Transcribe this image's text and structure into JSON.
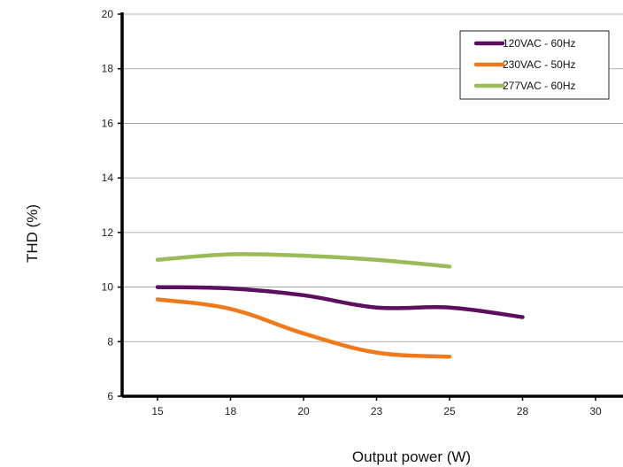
{
  "chart_data": {
    "type": "line",
    "title": "",
    "xlabel": "Output power (W)",
    "ylabel": "THD (%)",
    "x_categories": [
      "15",
      "18",
      "20",
      "23",
      "25",
      "28",
      "30"
    ],
    "ylim": [
      6,
      20
    ],
    "y_ticks": [
      6,
      8,
      10,
      12,
      14,
      16,
      18,
      20
    ],
    "grid": "horizontal",
    "legend_position": "top-right",
    "series": [
      {
        "name": "120VAC - 60Hz",
        "color": "#5b0f5e",
        "points": [
          {
            "x": "15",
            "y": 10.0
          },
          {
            "x": "18",
            "y": 9.95
          },
          {
            "x": "20",
            "y": 9.7
          },
          {
            "x": "23",
            "y": 9.25
          },
          {
            "x": "25",
            "y": 9.25
          },
          {
            "x": "28",
            "y": 8.9
          }
        ]
      },
      {
        "name": "230VAC - 50Hz",
        "color": "#f07a1a",
        "points": [
          {
            "x": "15",
            "y": 9.55
          },
          {
            "x": "18",
            "y": 9.2
          },
          {
            "x": "20",
            "y": 8.3
          },
          {
            "x": "23",
            "y": 7.6
          },
          {
            "x": "25",
            "y": 7.45
          }
        ]
      },
      {
        "name": "277VAC - 60Hz",
        "color": "#9bbb59",
        "points": [
          {
            "x": "15",
            "y": 11.0
          },
          {
            "x": "18",
            "y": 11.2
          },
          {
            "x": "20",
            "y": 11.15
          },
          {
            "x": "23",
            "y": 11.0
          },
          {
            "x": "25",
            "y": 10.75
          }
        ]
      }
    ]
  }
}
